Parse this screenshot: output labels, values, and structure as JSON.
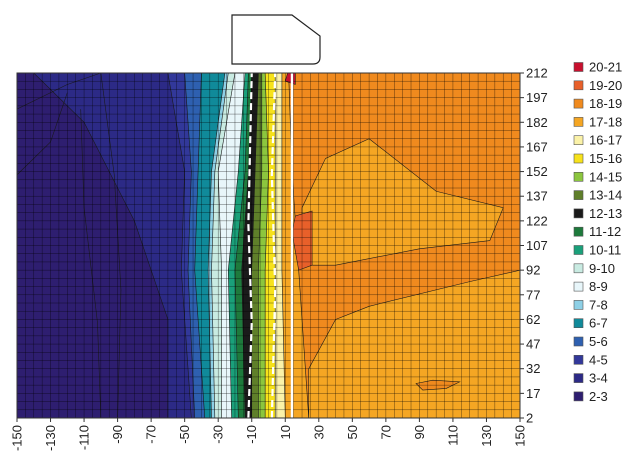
{
  "chart_data": {
    "type": "heatmap",
    "subtype": "filled-contour",
    "title": "",
    "xlabel": "",
    "ylabel": "",
    "x_ticks": [
      "-150",
      "-130",
      "-110",
      "-90",
      "-70",
      "-50",
      "-30",
      "-10",
      "10",
      "30",
      "50",
      "70",
      "90",
      "110",
      "130",
      "150"
    ],
    "y_ticks": [
      "212",
      "197",
      "182",
      "167",
      "152",
      "137",
      "122",
      "107",
      "92",
      "77",
      "62",
      "47",
      "32",
      "17",
      "2"
    ],
    "xlim": [
      -150,
      150
    ],
    "ylim": [
      2,
      212
    ],
    "x_tick_display": "rotated-vertical",
    "grid": true,
    "legend_position": "right",
    "legend": [
      {
        "label": "20-21",
        "color": "#c8102e"
      },
      {
        "label": "19-20",
        "color": "#e8602a"
      },
      {
        "label": "18-19",
        "color": "#f08a1e"
      },
      {
        "label": "17-18",
        "color": "#f5a623"
      },
      {
        "label": "16-17",
        "color": "#fbf2a8"
      },
      {
        "label": "15-16",
        "color": "#f7e21b"
      },
      {
        "label": "14-15",
        "color": "#8cc63e"
      },
      {
        "label": "13-14",
        "color": "#5f7f2a"
      },
      {
        "label": "12-13",
        "color": "#1a1a1a"
      },
      {
        "label": "11-12",
        "color": "#1e7a3c"
      },
      {
        "label": "10-11",
        "color": "#1aa07a"
      },
      {
        "label": "9-10",
        "color": "#c9ebe2"
      },
      {
        "label": "8-9",
        "color": "#e8f6fa"
      },
      {
        "label": "7-8",
        "color": "#8ed0e6"
      },
      {
        "label": "6-7",
        "color": "#108a9a"
      },
      {
        "label": "5-6",
        "color": "#2e60b0"
      },
      {
        "label": "4-5",
        "color": "#32389a"
      },
      {
        "label": "3-4",
        "color": "#2c2a86"
      },
      {
        "label": "2-3",
        "color": "#2e1e70"
      }
    ],
    "bands": [
      {
        "level": "2-3",
        "x_right_at_rows": [
          [
            "2",
            -60
          ],
          [
            "62",
            -60
          ],
          [
            "122",
            -80
          ],
          [
            "182",
            -110
          ],
          [
            "212",
            -140
          ]
        ]
      },
      {
        "level": "3-4",
        "x_right_at_rows": [
          [
            "2",
            -46
          ],
          [
            "92",
            -52
          ],
          [
            "152",
            -50
          ],
          [
            "212",
            -60
          ]
        ]
      },
      {
        "level": "4-5",
        "x_right_at_rows": [
          [
            "2",
            -44
          ],
          [
            "92",
            -48
          ],
          [
            "152",
            -46
          ],
          [
            "212",
            -50
          ]
        ]
      },
      {
        "level": "5-6",
        "x_right_at_rows": [
          [
            "2",
            -38
          ],
          [
            "92",
            -44
          ],
          [
            "152",
            -42
          ],
          [
            "212",
            -40
          ]
        ]
      },
      {
        "level": "6-7",
        "x_right_at_rows": [
          [
            "2",
            -34
          ],
          [
            "92",
            -36
          ],
          [
            "152",
            -34
          ],
          [
            "212",
            -26
          ]
        ]
      },
      {
        "level": "7-8",
        "x_right_at_rows": [
          [
            "2",
            -32
          ],
          [
            "92",
            -34
          ],
          [
            "152",
            -32
          ],
          [
            "212",
            -24
          ]
        ]
      },
      {
        "level": "9-10",
        "x_right_at_rows": [
          [
            "2",
            -28
          ],
          [
            "92",
            -28
          ],
          [
            "152",
            -30
          ],
          [
            "212",
            -20
          ]
        ]
      },
      {
        "level": "8-9",
        "x_right_at_rows": [
          [
            "2",
            -22
          ],
          [
            "92",
            -24
          ],
          [
            "152",
            -18
          ],
          [
            "212",
            -14
          ]
        ]
      },
      {
        "level": "10-11",
        "x_right_at_rows": [
          [
            "2",
            -18
          ],
          [
            "92",
            -20
          ],
          [
            "152",
            -14
          ],
          [
            "212",
            -12
          ]
        ]
      },
      {
        "level": "11-12",
        "x_right_at_rows": [
          [
            "2",
            -14
          ],
          [
            "92",
            -16
          ],
          [
            "152",
            -12
          ],
          [
            "212",
            -10
          ]
        ]
      },
      {
        "level": "12-13",
        "x_right_at_rows": [
          [
            "2",
            -10
          ],
          [
            "92",
            -10
          ],
          [
            "152",
            -8
          ],
          [
            "212",
            -6
          ]
        ]
      },
      {
        "level": "13-14",
        "x_right_at_rows": [
          [
            "2",
            -6
          ],
          [
            "92",
            -6
          ],
          [
            "152",
            -4
          ],
          [
            "212",
            -4
          ]
        ]
      },
      {
        "level": "14-15",
        "x_right_at_rows": [
          [
            "2",
            -2
          ],
          [
            "92",
            -2
          ],
          [
            "152",
            0
          ],
          [
            "212",
            -2
          ]
        ]
      },
      {
        "level": "15-16",
        "x_right_at_rows": [
          [
            "2",
            4
          ],
          [
            "92",
            4
          ],
          [
            "152",
            4
          ],
          [
            "212",
            4
          ]
        ]
      },
      {
        "level": "16-17",
        "x_right_at_rows": [
          [
            "2",
            10
          ],
          [
            "92",
            8
          ],
          [
            "152",
            8
          ],
          [
            "212",
            8
          ]
        ]
      },
      {
        "level": "17-18",
        "x_right_at_rows": [
          [
            "2",
            24
          ],
          [
            "92",
            18
          ],
          [
            "152",
            14
          ],
          [
            "212",
            12
          ]
        ]
      },
      {
        "level": "18-19",
        "x_right_at_rows": [
          [
            "2",
            150
          ],
          [
            "92",
            150
          ],
          [
            "152",
            150
          ],
          [
            "212",
            150
          ]
        ]
      }
    ],
    "regions": [
      {
        "level": "17-18",
        "polygon": [
          [
            24,
            2
          ],
          [
            24,
            32
          ],
          [
            40,
            62
          ],
          [
            60,
            70
          ],
          [
            120,
            85
          ],
          [
            150,
            92
          ],
          [
            150,
            2
          ]
        ]
      },
      {
        "level": "17-18",
        "polygon": [
          [
            20,
            95
          ],
          [
            20,
            130
          ],
          [
            34,
            160
          ],
          [
            60,
            172
          ],
          [
            100,
            140
          ],
          [
            140,
            130
          ],
          [
            132,
            110
          ],
          [
            90,
            105
          ],
          [
            40,
            95
          ]
        ]
      },
      {
        "level": "18-19",
        "polygon": [
          [
            88,
            23
          ],
          [
            98,
            25
          ],
          [
            114,
            24
          ],
          [
            106,
            20
          ],
          [
            92,
            19
          ]
        ]
      },
      {
        "level": "19-20",
        "polygon": [
          [
            14,
            115
          ],
          [
            16,
            125
          ],
          [
            26,
            128
          ],
          [
            26,
            95
          ],
          [
            18,
            92
          ]
        ]
      },
      {
        "level": "20-21",
        "polygon": [
          [
            10,
            207
          ],
          [
            12,
            214
          ],
          [
            16,
            214
          ],
          [
            16,
            205
          ]
        ]
      }
    ],
    "contour_lines": [
      {
        "points": [
          [
            -150,
            190
          ],
          [
            -120,
            205
          ],
          [
            -100,
            212
          ]
        ]
      },
      {
        "points": [
          [
            -150,
            150
          ],
          [
            -130,
            170
          ],
          [
            -120,
            200
          ]
        ]
      },
      {
        "points": [
          [
            -90,
            2
          ],
          [
            -88,
            80
          ],
          [
            -92,
            150
          ],
          [
            -100,
            212
          ]
        ]
      },
      {
        "points": [
          [
            -100,
            2
          ],
          [
            -102,
            60
          ],
          [
            -110,
            130
          ],
          [
            -112,
            190
          ]
        ]
      }
    ],
    "dashed_boundaries": [
      {
        "points": [
          [
            -12,
            2
          ],
          [
            -10,
            60
          ],
          [
            -12,
            120
          ],
          [
            -10,
            212
          ]
        ]
      },
      {
        "points": [
          [
            2,
            2
          ],
          [
            4,
            80
          ],
          [
            2,
            150
          ],
          [
            4,
            212
          ]
        ]
      }
    ],
    "solid_boundaries": [
      {
        "points": [
          [
            14,
            2
          ],
          [
            14,
            212
          ]
        ]
      }
    ]
  }
}
